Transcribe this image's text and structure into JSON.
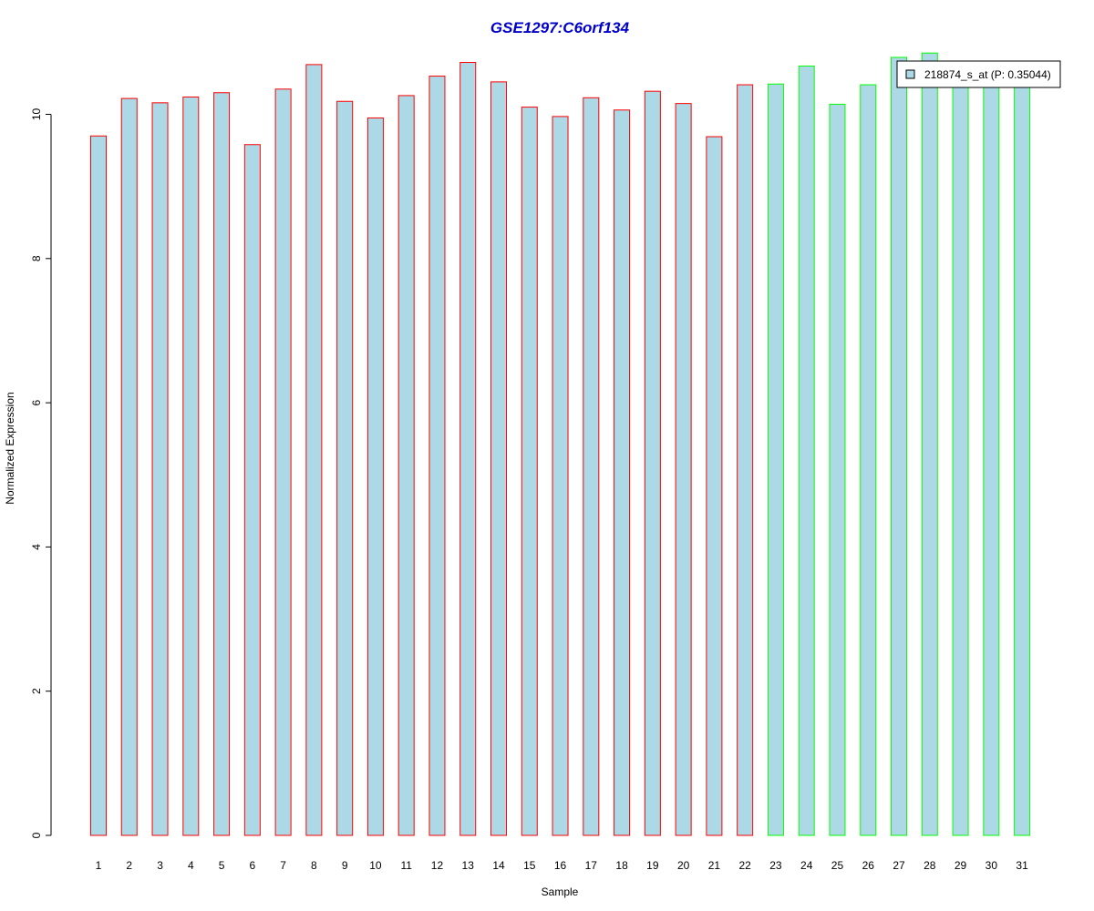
{
  "chart_data": {
    "type": "bar",
    "title": "GSE1297:C6orf134",
    "xlabel": "Sample",
    "ylabel": "Normalized Expression",
    "ylim": [
      0,
      11
    ],
    "yticks": [
      0,
      2,
      4,
      6,
      8,
      10
    ],
    "grid": false,
    "categories": [
      "1",
      "2",
      "3",
      "4",
      "5",
      "6",
      "7",
      "8",
      "9",
      "10",
      "11",
      "12",
      "13",
      "14",
      "15",
      "16",
      "17",
      "18",
      "19",
      "20",
      "21",
      "22",
      "23",
      "24",
      "25",
      "26",
      "27",
      "28",
      "29",
      "30",
      "31"
    ],
    "series": [
      {
        "name": "218874_s_at (P: 0.35044)",
        "values": [
          9.7,
          10.22,
          10.16,
          10.24,
          10.3,
          9.58,
          10.35,
          10.69,
          10.18,
          9.95,
          10.26,
          10.53,
          10.72,
          10.45,
          10.1,
          9.97,
          10.23,
          10.06,
          10.32,
          10.15,
          9.69,
          10.41,
          10.42,
          10.67,
          10.14,
          10.41,
          10.79,
          10.85,
          10.4,
          10.4,
          10.4
        ],
        "fill": "#add8e6",
        "group_colors": [
          "#ff0000",
          "#ff0000",
          "#ff0000",
          "#ff0000",
          "#ff0000",
          "#ff0000",
          "#ff0000",
          "#ff0000",
          "#ff0000",
          "#ff0000",
          "#ff0000",
          "#ff0000",
          "#ff0000",
          "#ff0000",
          "#ff0000",
          "#ff0000",
          "#ff0000",
          "#ff0000",
          "#ff0000",
          "#ff0000",
          "#ff0000",
          "#ff0000",
          "#00ff00",
          "#00ff00",
          "#00ff00",
          "#00ff00",
          "#00ff00",
          "#00ff00",
          "#00ff00",
          "#00ff00",
          "#00ff00"
        ]
      }
    ],
    "legend": {
      "label": "218874_s_at (P: 0.35044)",
      "placement": "top-right",
      "fill": "#add8e6"
    },
    "title_color": "#0000cc"
  }
}
